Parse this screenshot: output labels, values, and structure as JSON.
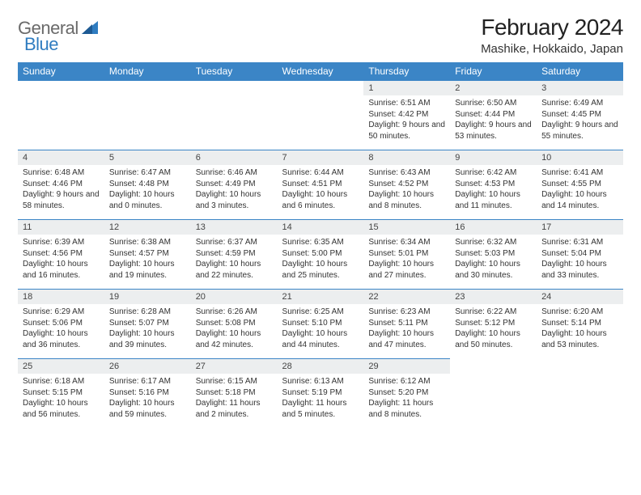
{
  "logo": {
    "general": "General",
    "blue": "Blue"
  },
  "title": "February 2024",
  "location": "Mashike, Hokkaido, Japan",
  "dayHeaders": [
    "Sunday",
    "Monday",
    "Tuesday",
    "Wednesday",
    "Thursday",
    "Friday",
    "Saturday"
  ],
  "colors": {
    "headerBg": "#3b85c6",
    "dayNumBg": "#eceeef",
    "logoBlue": "#2f7cc0"
  },
  "weeks": [
    [
      null,
      null,
      null,
      null,
      {
        "n": "1",
        "sr": "6:51 AM",
        "ss": "4:42 PM",
        "dl": "9 hours and 50 minutes."
      },
      {
        "n": "2",
        "sr": "6:50 AM",
        "ss": "4:44 PM",
        "dl": "9 hours and 53 minutes."
      },
      {
        "n": "3",
        "sr": "6:49 AM",
        "ss": "4:45 PM",
        "dl": "9 hours and 55 minutes."
      }
    ],
    [
      {
        "n": "4",
        "sr": "6:48 AM",
        "ss": "4:46 PM",
        "dl": "9 hours and 58 minutes."
      },
      {
        "n": "5",
        "sr": "6:47 AM",
        "ss": "4:48 PM",
        "dl": "10 hours and 0 minutes."
      },
      {
        "n": "6",
        "sr": "6:46 AM",
        "ss": "4:49 PM",
        "dl": "10 hours and 3 minutes."
      },
      {
        "n": "7",
        "sr": "6:44 AM",
        "ss": "4:51 PM",
        "dl": "10 hours and 6 minutes."
      },
      {
        "n": "8",
        "sr": "6:43 AM",
        "ss": "4:52 PM",
        "dl": "10 hours and 8 minutes."
      },
      {
        "n": "9",
        "sr": "6:42 AM",
        "ss": "4:53 PM",
        "dl": "10 hours and 11 minutes."
      },
      {
        "n": "10",
        "sr": "6:41 AM",
        "ss": "4:55 PM",
        "dl": "10 hours and 14 minutes."
      }
    ],
    [
      {
        "n": "11",
        "sr": "6:39 AM",
        "ss": "4:56 PM",
        "dl": "10 hours and 16 minutes."
      },
      {
        "n": "12",
        "sr": "6:38 AM",
        "ss": "4:57 PM",
        "dl": "10 hours and 19 minutes."
      },
      {
        "n": "13",
        "sr": "6:37 AM",
        "ss": "4:59 PM",
        "dl": "10 hours and 22 minutes."
      },
      {
        "n": "14",
        "sr": "6:35 AM",
        "ss": "5:00 PM",
        "dl": "10 hours and 25 minutes."
      },
      {
        "n": "15",
        "sr": "6:34 AM",
        "ss": "5:01 PM",
        "dl": "10 hours and 27 minutes."
      },
      {
        "n": "16",
        "sr": "6:32 AM",
        "ss": "5:03 PM",
        "dl": "10 hours and 30 minutes."
      },
      {
        "n": "17",
        "sr": "6:31 AM",
        "ss": "5:04 PM",
        "dl": "10 hours and 33 minutes."
      }
    ],
    [
      {
        "n": "18",
        "sr": "6:29 AM",
        "ss": "5:06 PM",
        "dl": "10 hours and 36 minutes."
      },
      {
        "n": "19",
        "sr": "6:28 AM",
        "ss": "5:07 PM",
        "dl": "10 hours and 39 minutes."
      },
      {
        "n": "20",
        "sr": "6:26 AM",
        "ss": "5:08 PM",
        "dl": "10 hours and 42 minutes."
      },
      {
        "n": "21",
        "sr": "6:25 AM",
        "ss": "5:10 PM",
        "dl": "10 hours and 44 minutes."
      },
      {
        "n": "22",
        "sr": "6:23 AM",
        "ss": "5:11 PM",
        "dl": "10 hours and 47 minutes."
      },
      {
        "n": "23",
        "sr": "6:22 AM",
        "ss": "5:12 PM",
        "dl": "10 hours and 50 minutes."
      },
      {
        "n": "24",
        "sr": "6:20 AM",
        "ss": "5:14 PM",
        "dl": "10 hours and 53 minutes."
      }
    ],
    [
      {
        "n": "25",
        "sr": "6:18 AM",
        "ss": "5:15 PM",
        "dl": "10 hours and 56 minutes."
      },
      {
        "n": "26",
        "sr": "6:17 AM",
        "ss": "5:16 PM",
        "dl": "10 hours and 59 minutes."
      },
      {
        "n": "27",
        "sr": "6:15 AM",
        "ss": "5:18 PM",
        "dl": "11 hours and 2 minutes."
      },
      {
        "n": "28",
        "sr": "6:13 AM",
        "ss": "5:19 PM",
        "dl": "11 hours and 5 minutes."
      },
      {
        "n": "29",
        "sr": "6:12 AM",
        "ss": "5:20 PM",
        "dl": "11 hours and 8 minutes."
      },
      null,
      null
    ]
  ],
  "labels": {
    "sunrise": "Sunrise:",
    "sunset": "Sunset:",
    "daylight": "Daylight:"
  }
}
